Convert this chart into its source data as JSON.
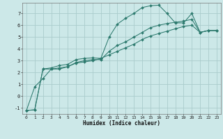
{
  "xlabel": "Humidex (Indice chaleur)",
  "bg_color": "#cce8e8",
  "grid_color": "#aacccc",
  "line_color": "#2d7a6e",
  "ylim": [
    -1.5,
    7.9
  ],
  "xlim": [
    -0.5,
    23.5
  ],
  "yticks": [
    -1,
    0,
    1,
    2,
    3,
    4,
    5,
    6,
    7
  ],
  "xticks": [
    0,
    1,
    2,
    3,
    4,
    5,
    6,
    7,
    8,
    9,
    10,
    11,
    12,
    13,
    14,
    15,
    16,
    17,
    18,
    19,
    20,
    21,
    22,
    23
  ],
  "curve1_x": [
    0,
    1,
    2,
    3,
    4,
    5,
    6,
    7,
    8,
    9,
    10,
    11,
    12,
    13,
    14,
    15,
    16,
    17,
    18,
    19,
    20,
    21,
    22,
    23
  ],
  "curve1_y": [
    -1.2,
    -1.15,
    2.3,
    2.4,
    2.6,
    2.7,
    3.1,
    3.2,
    3.25,
    3.2,
    5.0,
    6.1,
    6.6,
    7.0,
    7.5,
    7.65,
    7.7,
    7.0,
    6.2,
    6.2,
    7.0,
    5.4,
    5.55,
    5.55
  ],
  "curve2_x": [
    0,
    1,
    2,
    3,
    4,
    5,
    6,
    7,
    8,
    9,
    10,
    11,
    12,
    13,
    14,
    15,
    16,
    17,
    18,
    19,
    20,
    21,
    22,
    23
  ],
  "curve2_y": [
    -1.2,
    -1.15,
    2.3,
    2.3,
    2.3,
    2.5,
    2.85,
    3.0,
    3.1,
    3.1,
    3.8,
    4.3,
    4.6,
    5.0,
    5.4,
    5.8,
    6.0,
    6.15,
    6.25,
    6.35,
    6.5,
    5.4,
    5.55,
    5.55
  ],
  "curve3_x": [
    0,
    1,
    2,
    3,
    4,
    5,
    6,
    7,
    8,
    9,
    10,
    11,
    12,
    13,
    14,
    15,
    16,
    17,
    18,
    19,
    20,
    21,
    22,
    23
  ],
  "curve3_y": [
    -1.2,
    0.8,
    1.5,
    2.3,
    2.4,
    2.5,
    2.8,
    2.9,
    3.0,
    3.2,
    3.5,
    3.8,
    4.1,
    4.4,
    4.8,
    5.1,
    5.3,
    5.5,
    5.7,
    5.9,
    6.0,
    5.4,
    5.55,
    5.55
  ]
}
